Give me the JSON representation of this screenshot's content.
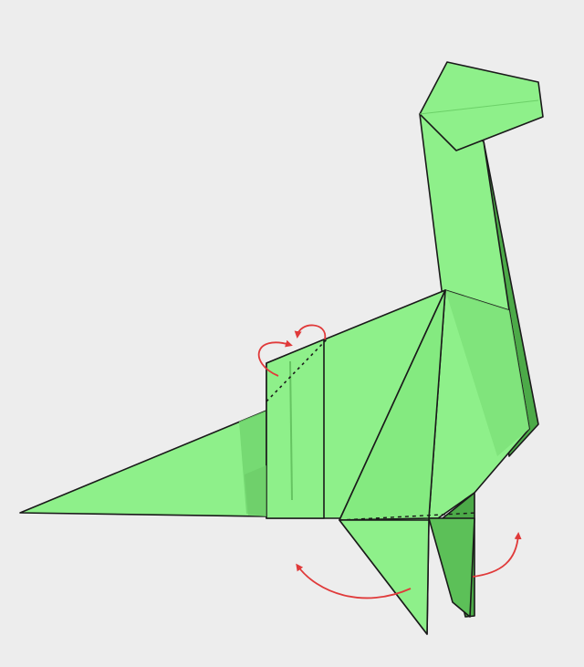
{
  "diagram": {
    "subject": "origami-dinosaur-brachiosaurus",
    "colors": {
      "background": "#ededed",
      "paper_light": "#8ef08a",
      "paper_mid": "#78de74",
      "paper_dark": "#4caa48",
      "paper_shadow": "#5cc058",
      "outline": "#1a1a1a",
      "arrow": "#e03a3a"
    },
    "folds": [
      {
        "kind": "mountain-fold",
        "target": "back-hump"
      },
      {
        "kind": "valley-fold",
        "target": "front-leg-left"
      },
      {
        "kind": "valley-fold",
        "target": "front-leg-right"
      }
    ],
    "arrows": [
      {
        "kind": "curved-arrow",
        "target": "back-hump-outer"
      },
      {
        "kind": "curved-arrow",
        "target": "back-hump-inner"
      },
      {
        "kind": "curved-arrow",
        "target": "leg-left-swing"
      },
      {
        "kind": "curved-arrow",
        "target": "leg-right-swing"
      }
    ]
  }
}
